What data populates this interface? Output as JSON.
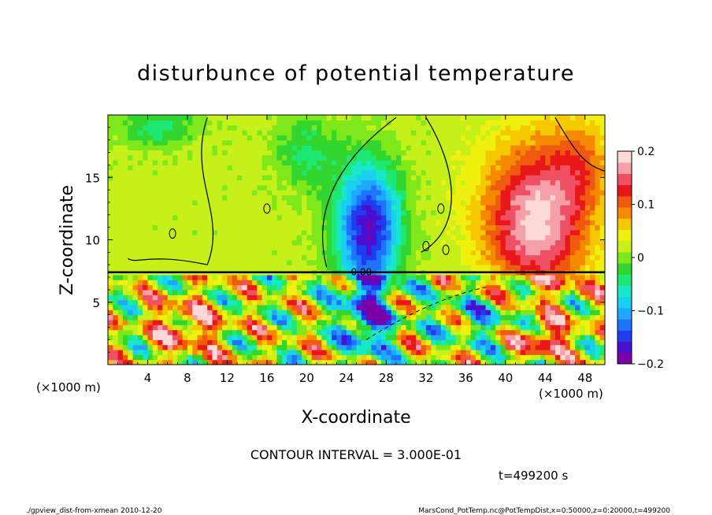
{
  "chart_data": {
    "type": "heatmap",
    "title": "disturbunce of potential temperature",
    "xlabel": "X-coordinate",
    "ylabel": "Z-coordinate",
    "x_unit": "(×1000 m)",
    "z_unit": "(×1000 m)",
    "xlim": [
      0,
      50
    ],
    "ylim": [
      0,
      20
    ],
    "x_ticks": [
      4,
      8,
      12,
      16,
      20,
      24,
      28,
      32,
      36,
      40,
      44,
      48
    ],
    "y_ticks": [
      5,
      10,
      15
    ],
    "colorbar": {
      "min": -0.2,
      "max": 0.2,
      "ticks": [
        "0.2",
        "0.1",
        "0",
        "−0.1",
        "−0.2"
      ],
      "tick_values": [
        0.2,
        0.1,
        0,
        -0.1,
        -0.2
      ],
      "colors": [
        "#7a00a8",
        "#4b0fd1",
        "#1f3cf0",
        "#1f73ff",
        "#20a8ff",
        "#1ad0f0",
        "#18e8c8",
        "#1de874",
        "#32d62e",
        "#7ee81a",
        "#c6f01a",
        "#f0f00e",
        "#f5c800",
        "#f58a00",
        "#f05a10",
        "#e81818",
        "#f05064",
        "#f5a0a8",
        "#ffd8d8"
      ]
    },
    "contour_label": "0.00",
    "fields": [
      {
        "x": 26.2,
        "z": 11.0,
        "value": -0.2,
        "sx": 3.2,
        "sz": 5.0
      },
      {
        "x": 43.0,
        "z": 11.5,
        "value": 0.17,
        "sx": 5.0,
        "sz": 6.0
      },
      {
        "x": 47.5,
        "z": 16.0,
        "value": 0.06,
        "sx": 3.0,
        "sz": 4.0
      },
      {
        "x": 20.0,
        "z": 17.0,
        "value": -0.06,
        "sx": 3.0,
        "sz": 3.0
      },
      {
        "x": 5.0,
        "z": 19.0,
        "value": -0.06,
        "sx": 4.0,
        "sz": 1.5
      },
      {
        "x": 26.0,
        "z": 3.5,
        "value": -0.15,
        "sx": 2.5,
        "sz": 3.0
      },
      {
        "x": 8.0,
        "z": 3.0,
        "value": 0.1,
        "sx": 4.0,
        "sz": 2.5
      },
      {
        "x": 38.0,
        "z": 4.0,
        "value": -0.08,
        "sx": 5.0,
        "sz": 2.5
      },
      {
        "x": 44.0,
        "z": 2.0,
        "value": 0.12,
        "sx": 3.0,
        "sz": 1.5
      }
    ]
  },
  "footer": {
    "contour_interval": "CONTOUR INTERVAL = 3.000E-01",
    "time": "t=499200 s",
    "script": "./gpview_dist-from-xmean   2010-12-20",
    "source": "MarsCond_PotTemp.nc@PotTempDist,x=0:50000,z=0:20000,t=499200"
  }
}
